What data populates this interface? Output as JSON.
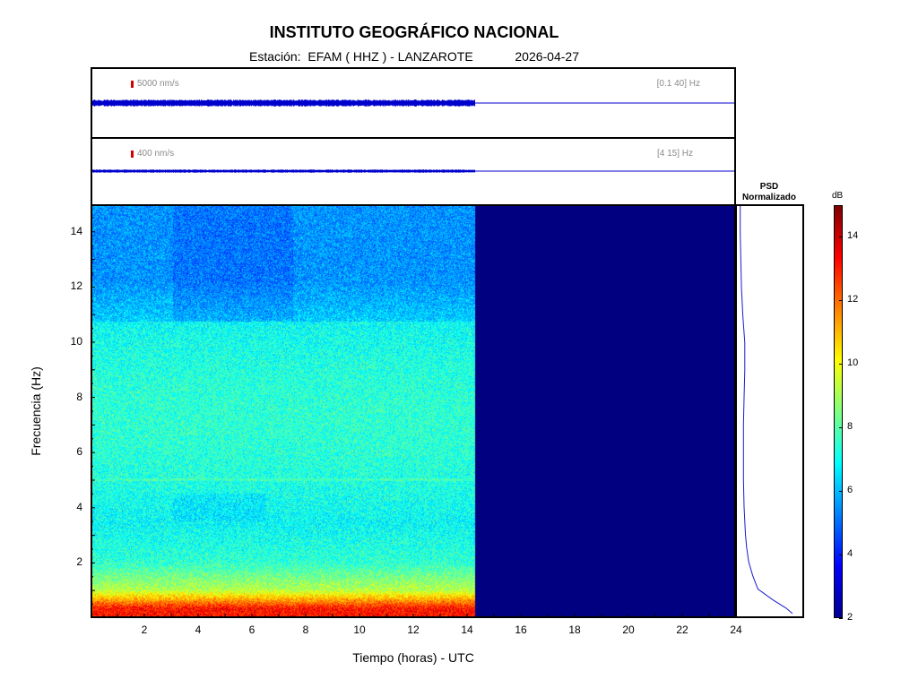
{
  "header": {
    "title": "INSTITUTO GEOGRÁFICO NACIONAL",
    "station_label": "Estación:  EFAM ( HHZ ) - LANZAROTE",
    "date": "2026-04-27"
  },
  "traces": [
    {
      "scale": "5000 nm/s",
      "band": "[0.1 40] Hz",
      "data_end_hour": 14.3
    },
    {
      "scale": "400 nm/s",
      "band": "[4 15] Hz",
      "data_end_hour": 14.3
    }
  ],
  "psd": {
    "title_line1": "PSD",
    "title_line2": "Normalizado"
  },
  "colorbar": {
    "unit": "dB",
    "min": 2,
    "max": 15,
    "ticks": [
      "2",
      "4",
      "6",
      "8",
      "10",
      "12",
      "14"
    ]
  },
  "colors": {
    "no_data": "#000080",
    "trace": "#0000cc",
    "scale_marker": "#d00000"
  },
  "chart_data": {
    "type": "heatmap",
    "title": "INSTITUTO GEOGRÁFICO NACIONAL",
    "xlabel": "Tiempo (horas) - UTC",
    "ylabel": "Frecuencia  (Hz)",
    "xlim": [
      0,
      24
    ],
    "ylim": [
      0,
      15
    ],
    "xticks": [
      "2",
      "4",
      "6",
      "8",
      "10",
      "12",
      "14",
      "16",
      "18",
      "20",
      "22",
      "24"
    ],
    "yticks": [
      "2",
      "4",
      "6",
      "8",
      "10",
      "12",
      "14"
    ],
    "data_end_hour": 14.3,
    "psd_profile": {
      "freq": [
        0.1,
        0.3,
        0.6,
        1,
        1.5,
        2,
        2.5,
        3,
        4,
        5,
        6,
        7,
        8,
        9,
        10,
        11,
        12,
        13,
        14,
        15
      ],
      "value": [
        0.85,
        0.75,
        0.55,
        0.32,
        0.24,
        0.18,
        0.15,
        0.13,
        0.11,
        0.1,
        0.1,
        0.1,
        0.11,
        0.12,
        0.12,
        0.09,
        0.07,
        0.06,
        0.05,
        0.05
      ]
    }
  }
}
